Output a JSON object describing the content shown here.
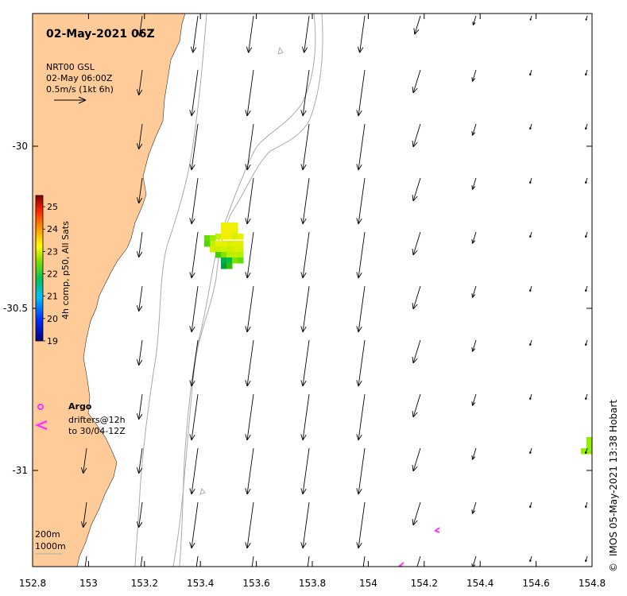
{
  "title": "02-May-2021 06Z",
  "current_source": {
    "line1": "NRT00 GSL",
    "line2": "02-May 06:00Z",
    "line3": "0.5m/s (1kt 6h)"
  },
  "colorbar": {
    "label": "4h comp, p50, All Sats",
    "ticks": [
      "25",
      "24",
      "23",
      "22",
      "21",
      "20",
      "19"
    ],
    "min": 19,
    "max": 25.5
  },
  "legend": {
    "argo_label": "Argo",
    "drifters_line1": "drifters@12h",
    "drifters_line2": "to 30/04-12Z",
    "argo_color": "#ff33ff"
  },
  "contours": {
    "label_200": "200m",
    "label_1000": "1000m"
  },
  "x_axis": {
    "ticks": [
      "152.8",
      "153",
      "153.2",
      "153.4",
      "153.6",
      "153.8",
      "154",
      "154.2",
      "154.4",
      "154.6",
      "154.8"
    ]
  },
  "y_axis": {
    "ticks": [
      "-30",
      "-30.5",
      "-31"
    ]
  },
  "credit": "IMOS 05-May-2021 13:38 Hobart",
  "copyright_symbol": "©",
  "colors": {
    "land": "#ffcc99",
    "contour": "#aaaaaa",
    "arrow": "#000000"
  }
}
